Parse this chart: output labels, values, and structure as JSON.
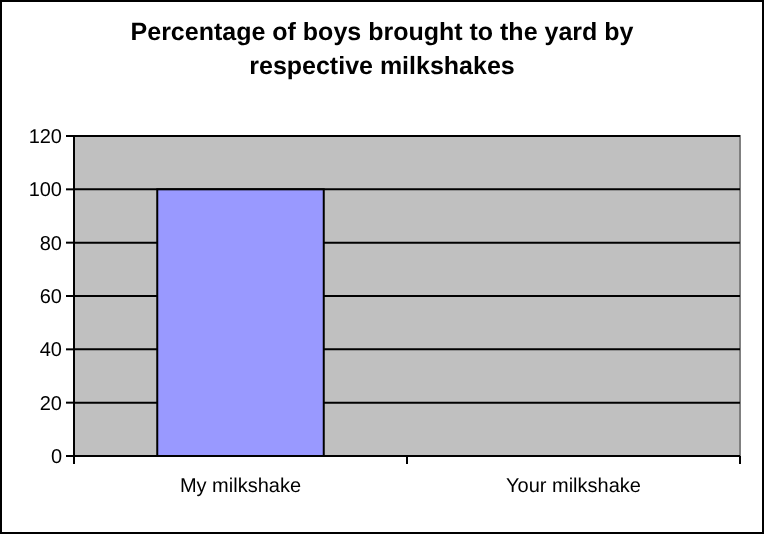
{
  "chart_data": {
    "type": "bar",
    "title": "Percentage of boys brought to the yard by respective milkshakes",
    "categories": [
      "My milkshake",
      "Your milkshake"
    ],
    "values": [
      100,
      0
    ],
    "color": "#9999ff",
    "ylim": [
      0,
      120
    ],
    "yticks": [
      0,
      20,
      40,
      60,
      80,
      100,
      120
    ],
    "grid": "y"
  }
}
